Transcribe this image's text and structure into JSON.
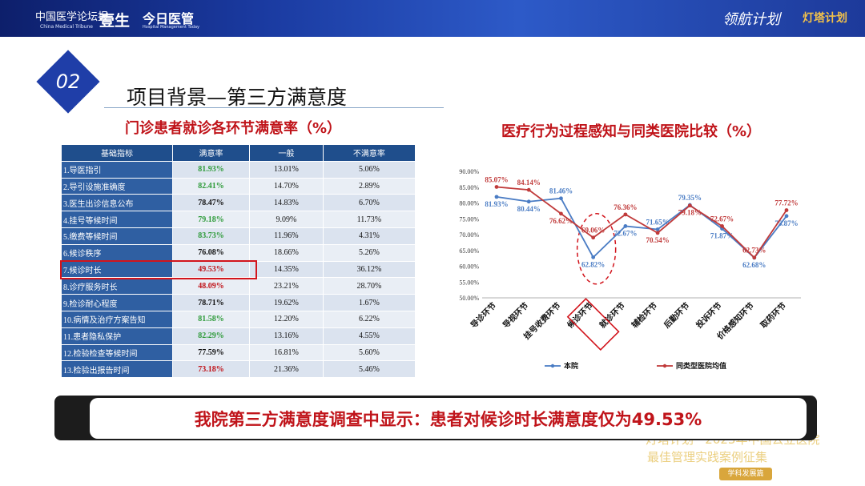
{
  "header": {
    "brand_cn": "中国医学论坛报",
    "brand_en": "China Medical Tribune",
    "brand2": "壹生",
    "brand3": "今日医管",
    "brand3_en": "Hospital Management Today",
    "right_logo1": "领航计划",
    "right_logo2": "灯塔计划"
  },
  "section": {
    "number": "02",
    "title": "项目背景—第三方满意度"
  },
  "table": {
    "heading": "门诊患者就诊各环节满意率（%）",
    "columns": [
      "基础指标",
      "满意率",
      "一般",
      "不满意率"
    ],
    "rows": [
      {
        "name": "1.导医指引",
        "sat": "81.93%",
        "avg": "13.01%",
        "dis": "5.06%",
        "color": "#2e9b3a"
      },
      {
        "name": "2.导引设施准确度",
        "sat": "82.41%",
        "avg": "14.70%",
        "dis": "2.89%",
        "color": "#2e9b3a"
      },
      {
        "name": "3.医生出诊信息公布",
        "sat": "78.47%",
        "avg": "14.83%",
        "dis": "6.70%",
        "color": "#111111"
      },
      {
        "name": "4.挂号等候时间",
        "sat": "79.18%",
        "avg": "9.09%",
        "dis": "11.73%",
        "color": "#2e9b3a"
      },
      {
        "name": "5.缴费等候时间",
        "sat": "83.73%",
        "avg": "11.96%",
        "dis": "4.31%",
        "color": "#2e9b3a"
      },
      {
        "name": "6.候诊秩序",
        "sat": "76.08%",
        "avg": "18.66%",
        "dis": "5.26%",
        "color": "#111111"
      },
      {
        "name": "7.候诊时长",
        "sat": "49.53%",
        "avg": "14.35%",
        "dis": "36.12%",
        "color": "#c0141a"
      },
      {
        "name": "8.诊疗服务时长",
        "sat": "48.09%",
        "avg": "23.21%",
        "dis": "28.70%",
        "color": "#c0141a"
      },
      {
        "name": "9.检诊耐心程度",
        "sat": "78.71%",
        "avg": "19.62%",
        "dis": "1.67%",
        "color": "#111111"
      },
      {
        "name": "10.病情及治疗方案告知",
        "sat": "81.58%",
        "avg": "12.20%",
        "dis": "6.22%",
        "color": "#2e9b3a"
      },
      {
        "name": "11.患者隐私保护",
        "sat": "82.29%",
        "avg": "13.16%",
        "dis": "4.55%",
        "color": "#2e9b3a"
      },
      {
        "name": "12.检验检查等候时间",
        "sat": "77.59%",
        "avg": "16.81%",
        "dis": "5.60%",
        "color": "#111111"
      },
      {
        "name": "13.检验出报告时间",
        "sat": "73.18%",
        "avg": "21.36%",
        "dis": "5.46%",
        "color": "#c0141a"
      }
    ]
  },
  "chart_data": {
    "type": "line",
    "title": "医疗行为过程感知与同类医院比较（%）",
    "categories": [
      "导诊环节",
      "导视环节",
      "挂号收费环节",
      "候诊环节",
      "就诊环节",
      "辅检环节",
      "后勤环节",
      "投诉环节",
      "价格感知环节",
      "取药环节"
    ],
    "ylim": [
      50,
      90
    ],
    "yticks": [
      "50.00%",
      "55.00%",
      "60.00%",
      "65.00%",
      "70.00%",
      "75.00%",
      "80.00%",
      "85.00%",
      "90.00%"
    ],
    "series": [
      {
        "name": "本院",
        "color": "#4a7cc4",
        "values": [
          81.93,
          80.44,
          81.46,
          62.82,
          72.67,
          71.65,
          79.35,
          71.87,
          62.68,
          75.87
        ],
        "labels": [
          "81.93%",
          "80.44%",
          "81.46%",
          "62.82%",
          "72.67%",
          "71.65%",
          "79.35%",
          "71.87%",
          "62.68%",
          "75.87%"
        ]
      },
      {
        "name": "同类型医院均值",
        "color": "#c03a3a",
        "values": [
          85.07,
          84.14,
          76.62,
          69.06,
          76.36,
          70.54,
          79.18,
          72.67,
          62.73,
          77.72
        ],
        "labels": [
          "85.07%",
          "84.14%",
          "76.62%",
          "69.06%",
          "76.36%",
          "70.54%",
          "79.18%",
          "72.67%",
          "62.73%",
          "77.72%"
        ]
      }
    ]
  },
  "banner": {
    "text": "我院第三方满意度调查中显示：患者对候诊时长满意度仅为49.53%"
  },
  "watermark": {
    "line1": "灯塔计划 · 2023年中国公立医院",
    "line2": "最佳管理实践案例征集",
    "badge": "学科发展篇"
  }
}
